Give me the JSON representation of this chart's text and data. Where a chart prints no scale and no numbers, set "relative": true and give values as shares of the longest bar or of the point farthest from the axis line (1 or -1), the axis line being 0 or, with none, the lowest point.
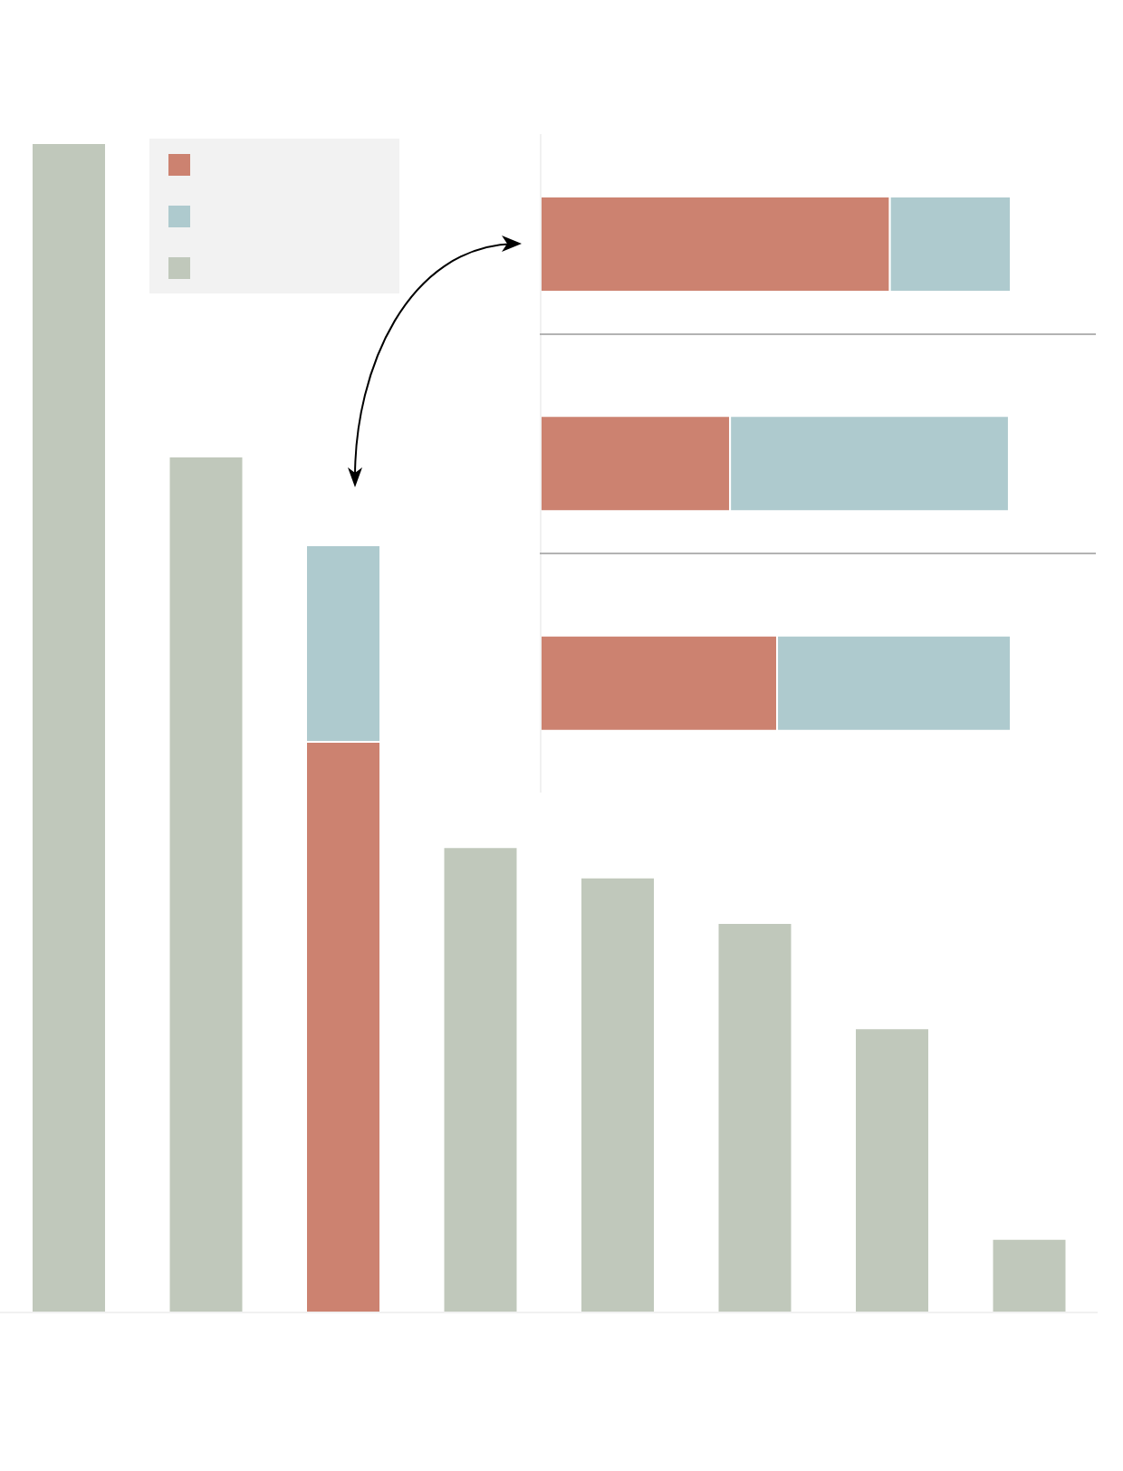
{
  "chart_data": [
    {
      "type": "bar",
      "stacked": true,
      "relative": true,
      "categories": [
        null,
        null,
        null,
        null,
        null,
        null,
        null,
        null
      ],
      "series": [
        {
          "color": "#cc8270",
          "values": [
            null,
            null,
            0.488,
            null,
            null,
            null,
            null,
            null
          ]
        },
        {
          "color": "#aecace",
          "values": [
            null,
            null,
            0.168,
            null,
            null,
            null,
            null,
            null
          ]
        },
        {
          "color": "#c0c8bb",
          "values": [
            1,
            0.732,
            null,
            0.398,
            0.372,
            0.333,
            0.243,
            0.063
          ]
        }
      ]
    },
    {
      "type": "bar",
      "stacked": true,
      "relative": true,
      "orientation": "horizontal",
      "categories": [
        null,
        null,
        null
      ],
      "series": [
        {
          "color": "#cc8270",
          "values": [
            0.743,
            0.403,
            0.503
          ]
        },
        {
          "color": "#aecace",
          "values": [
            0.257,
            0.593,
            0.497
          ]
        }
      ]
    }
  ]
}
